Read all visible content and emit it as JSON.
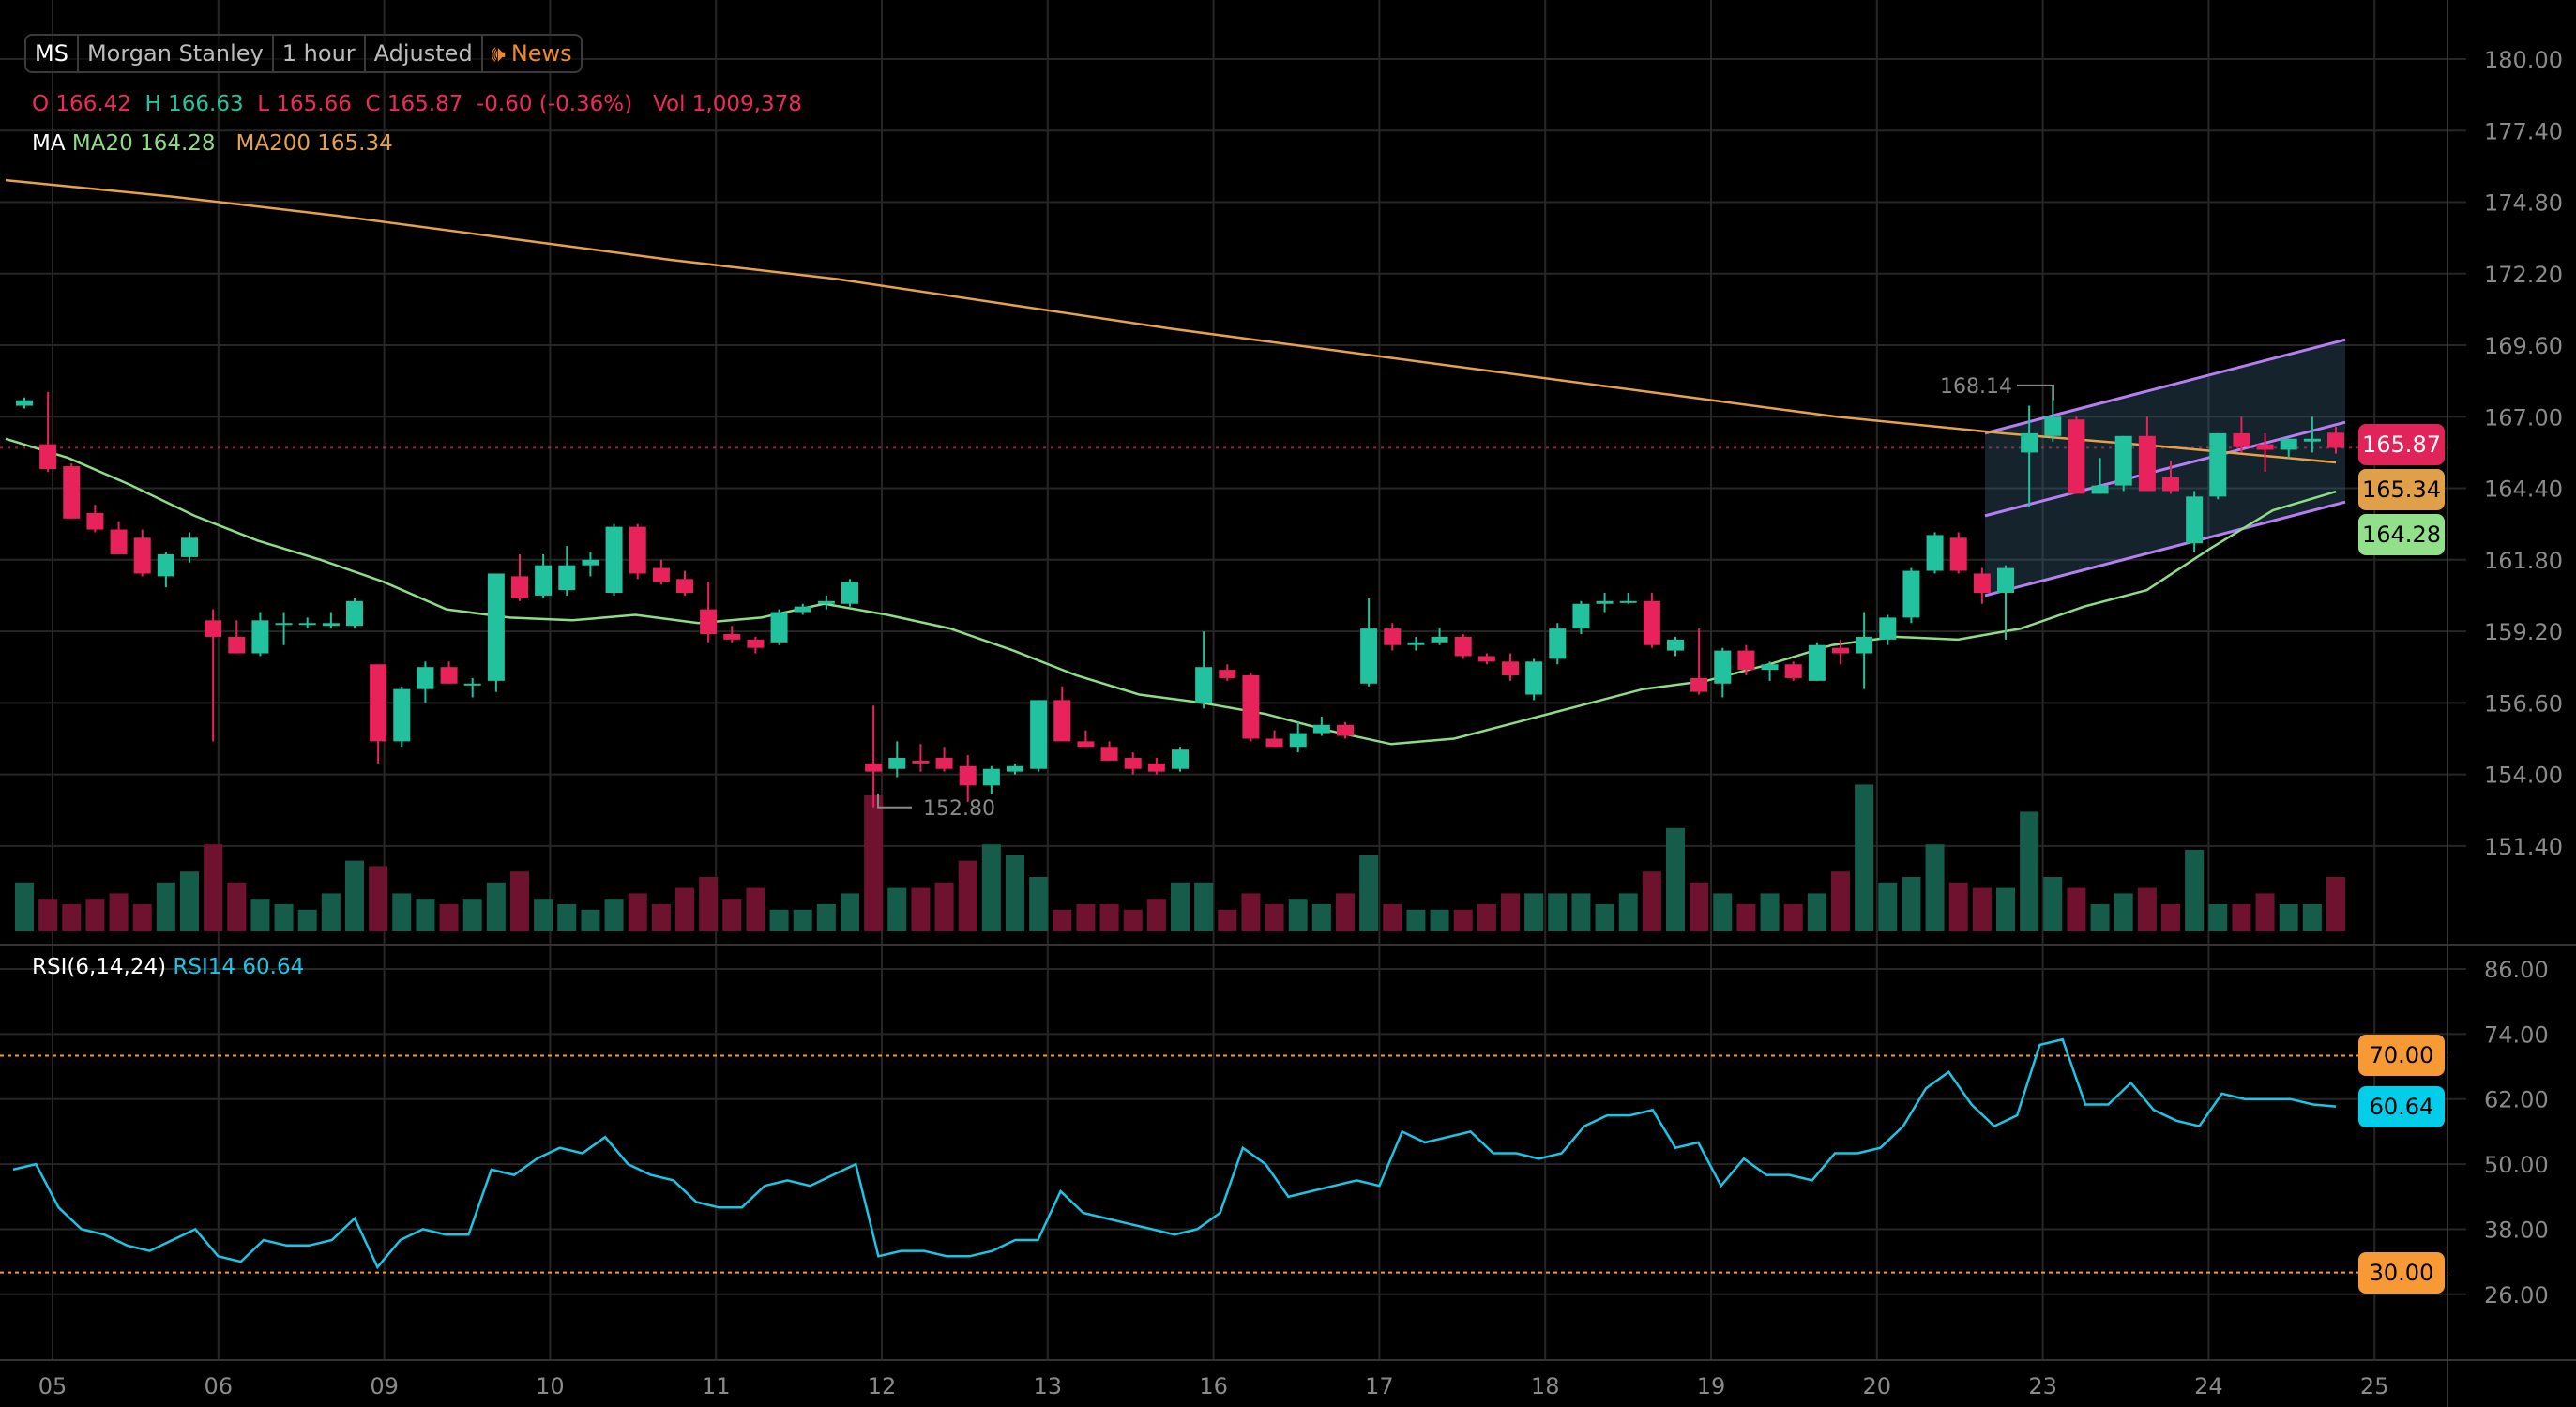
{
  "header": {
    "symbol": "MS",
    "name": "Morgan Stanley",
    "interval": "1 hour",
    "adjustment": "Adjusted",
    "news_label": "News",
    "news_icon": "speaker-icon"
  },
  "ohlc": {
    "o_label": "O",
    "o": "166.42",
    "h_label": "H",
    "h": "166.63",
    "l_label": "L",
    "l": "165.66",
    "c_label": "C",
    "c": "165.87",
    "change": "-0.60 (-0.36%)",
    "vol_label": "Vol",
    "vol": "1,009,378"
  },
  "ma": {
    "label": "MA",
    "ma20_label": "MA20",
    "ma20": "164.28",
    "ma200_label": "MA200",
    "ma200": "165.34"
  },
  "rsi_legend": {
    "label": "RSI(6,14,24)",
    "rsi14_label": "RSI14",
    "rsi14": "60.64"
  },
  "colors": {
    "up": "#22c29e",
    "down": "#e8235c",
    "ma20": "#8fdc86",
    "ma200": "#e5a24a",
    "rsi": "#19c6e6",
    "channel": "#b57ff2",
    "band": "#f79a35"
  },
  "chart_data": {
    "type": "candlestick",
    "price_ticks": [
      "180.00",
      "177.40",
      "174.80",
      "172.20",
      "169.60",
      "167.00",
      "164.40",
      "161.80",
      "159.20",
      "156.60",
      "154.00",
      "151.40"
    ],
    "price_range": [
      151.4,
      180.0
    ],
    "date_labels": [
      "05",
      "06",
      "09",
      "10",
      "11",
      "12",
      "13",
      "16",
      "17",
      "18",
      "19",
      "20",
      "23",
      "24",
      "25"
    ],
    "rsi_ticks": [
      "86.00",
      "74.00",
      "62.00",
      "50.00",
      "38.00",
      "26.00"
    ],
    "rsi_range": [
      26,
      86
    ],
    "rsi_bands": [
      "70.00",
      "30.00"
    ],
    "last_price": "165.87",
    "ma200_tag": "165.34",
    "ma20_tag": "164.28",
    "rsi_tag": "60.64",
    "high_annotation": "168.14",
    "low_annotation": "152.80",
    "candles": [
      [
        167.4,
        167.7,
        167.3,
        167.6,
        0.9
      ],
      [
        166.0,
        167.9,
        165.0,
        165.1,
        0.6
      ],
      [
        165.2,
        165.3,
        163.3,
        163.3,
        0.5
      ],
      [
        163.5,
        163.8,
        162.8,
        162.9,
        0.6
      ],
      [
        162.9,
        163.2,
        162.0,
        162.0,
        0.7
      ],
      [
        162.6,
        162.9,
        161.2,
        161.3,
        0.5
      ],
      [
        161.2,
        162.1,
        160.8,
        162.0,
        0.9
      ],
      [
        161.9,
        162.8,
        161.7,
        162.6,
        1.1
      ],
      [
        159.6,
        160.0,
        155.2,
        159.0,
        1.6
      ],
      [
        159.0,
        159.6,
        158.4,
        158.4,
        0.9
      ],
      [
        158.4,
        159.9,
        158.3,
        159.6,
        0.6
      ],
      [
        159.5,
        159.9,
        158.7,
        159.5,
        0.5
      ],
      [
        159.5,
        159.7,
        159.3,
        159.5,
        0.4
      ],
      [
        159.4,
        159.9,
        159.3,
        159.5,
        0.7
      ],
      [
        159.4,
        160.4,
        159.3,
        160.3,
        1.3
      ],
      [
        158.0,
        158.0,
        154.4,
        155.2,
        1.2
      ],
      [
        155.2,
        157.2,
        155.0,
        157.1,
        0.7
      ],
      [
        157.1,
        158.1,
        156.6,
        157.9,
        0.6
      ],
      [
        157.9,
        158.1,
        157.3,
        157.3,
        0.5
      ],
      [
        157.3,
        157.5,
        156.8,
        157.3,
        0.6
      ],
      [
        157.4,
        161.3,
        157.0,
        161.3,
        0.9
      ],
      [
        161.2,
        162.0,
        160.3,
        160.4,
        1.1
      ],
      [
        160.5,
        162.0,
        160.4,
        161.6,
        0.6
      ],
      [
        160.7,
        162.3,
        160.5,
        161.6,
        0.5
      ],
      [
        161.6,
        162.1,
        161.2,
        161.8,
        0.4
      ],
      [
        160.6,
        163.1,
        160.5,
        163.0,
        0.6
      ],
      [
        163.0,
        163.1,
        161.1,
        161.3,
        0.7
      ],
      [
        161.5,
        161.8,
        160.9,
        161.0,
        0.5
      ],
      [
        161.1,
        161.4,
        160.5,
        160.6,
        0.8
      ],
      [
        160.0,
        161.0,
        158.8,
        159.1,
        1.0
      ],
      [
        159.1,
        159.4,
        158.8,
        158.9,
        0.6
      ],
      [
        158.9,
        159.0,
        158.4,
        158.6,
        0.8
      ],
      [
        158.8,
        160.0,
        158.7,
        159.9,
        0.4
      ],
      [
        159.9,
        160.2,
        159.8,
        160.1,
        0.4
      ],
      [
        160.2,
        160.5,
        160.0,
        160.3,
        0.5
      ],
      [
        160.2,
        161.1,
        160.1,
        161.0,
        0.7
      ],
      [
        154.4,
        156.5,
        152.8,
        154.1,
        2.5
      ],
      [
        154.2,
        155.2,
        153.9,
        154.6,
        0.8
      ],
      [
        154.5,
        155.1,
        154.1,
        154.4,
        0.8
      ],
      [
        154.6,
        155.0,
        154.1,
        154.2,
        0.9
      ],
      [
        154.3,
        154.7,
        153.0,
        153.6,
        1.3
      ],
      [
        153.6,
        154.3,
        153.3,
        154.2,
        1.6
      ],
      [
        154.1,
        154.4,
        154.0,
        154.3,
        1.4
      ],
      [
        154.2,
        156.7,
        154.1,
        156.7,
        1.0
      ],
      [
        156.7,
        157.2,
        155.2,
        155.2,
        0.4
      ],
      [
        155.2,
        155.6,
        155.0,
        155.0,
        0.5
      ],
      [
        155.0,
        155.2,
        154.5,
        154.5,
        0.5
      ],
      [
        154.6,
        154.8,
        154.0,
        154.2,
        0.4
      ],
      [
        154.4,
        154.6,
        154.0,
        154.1,
        0.6
      ],
      [
        154.2,
        155.0,
        154.1,
        154.9,
        0.9
      ],
      [
        156.6,
        159.2,
        156.4,
        157.9,
        0.9
      ],
      [
        157.8,
        158.0,
        157.4,
        157.5,
        0.4
      ],
      [
        157.6,
        157.7,
        155.2,
        155.3,
        0.7
      ],
      [
        155.3,
        155.6,
        155.0,
        155.0,
        0.5
      ],
      [
        155.0,
        155.9,
        154.8,
        155.5,
        0.6
      ],
      [
        155.5,
        156.1,
        155.4,
        155.8,
        0.5
      ],
      [
        155.8,
        155.9,
        155.3,
        155.4,
        0.7
      ],
      [
        157.3,
        160.4,
        157.2,
        159.3,
        1.4
      ],
      [
        159.3,
        159.5,
        158.5,
        158.7,
        0.5
      ],
      [
        158.7,
        159.0,
        158.5,
        158.8,
        0.4
      ],
      [
        158.8,
        159.3,
        158.7,
        159.0,
        0.4
      ],
      [
        159.0,
        159.1,
        158.2,
        158.3,
        0.4
      ],
      [
        158.3,
        158.4,
        158.0,
        158.1,
        0.5
      ],
      [
        158.1,
        158.4,
        157.4,
        157.6,
        0.7
      ],
      [
        156.9,
        158.2,
        156.7,
        158.1,
        0.7
      ],
      [
        158.2,
        159.5,
        158.0,
        159.3,
        0.7
      ],
      [
        159.3,
        160.3,
        159.1,
        160.2,
        0.7
      ],
      [
        160.2,
        160.6,
        159.9,
        160.3,
        0.5
      ],
      [
        160.3,
        160.6,
        160.2,
        160.3,
        0.7
      ],
      [
        160.3,
        160.6,
        158.6,
        158.7,
        1.1
      ],
      [
        158.5,
        159.0,
        158.3,
        158.9,
        1.9
      ],
      [
        157.5,
        159.3,
        156.9,
        157.0,
        0.9
      ],
      [
        157.3,
        158.6,
        156.8,
        158.5,
        0.7
      ],
      [
        158.5,
        158.7,
        157.6,
        157.8,
        0.5
      ],
      [
        157.8,
        158.1,
        157.4,
        158.0,
        0.7
      ],
      [
        158.0,
        158.1,
        157.4,
        157.5,
        0.5
      ],
      [
        157.4,
        158.8,
        157.4,
        158.7,
        0.7
      ],
      [
        158.6,
        158.9,
        158.0,
        158.4,
        1.1
      ],
      [
        158.4,
        159.9,
        157.1,
        159.0,
        2.7
      ],
      [
        158.9,
        159.8,
        158.7,
        159.7,
        0.9
      ],
      [
        159.7,
        161.5,
        159.5,
        161.4,
        1.0
      ],
      [
        161.4,
        162.8,
        161.3,
        162.7,
        1.6
      ],
      [
        162.6,
        162.8,
        161.3,
        161.4,
        0.9
      ],
      [
        161.3,
        161.5,
        160.2,
        160.6,
        0.8
      ],
      [
        160.6,
        161.6,
        158.9,
        161.5,
        0.8
      ],
      [
        165.7,
        167.4,
        163.7,
        166.4,
        2.2
      ],
      [
        166.3,
        168.1,
        166.1,
        167.0,
        1.0
      ],
      [
        166.9,
        167.0,
        164.2,
        164.2,
        0.8
      ],
      [
        164.2,
        165.5,
        164.2,
        164.5,
        0.5
      ],
      [
        164.5,
        166.3,
        164.3,
        166.3,
        0.7
      ],
      [
        166.3,
        167.0,
        164.3,
        164.3,
        0.8
      ],
      [
        164.8,
        165.4,
        164.2,
        164.3,
        0.5
      ],
      [
        162.4,
        164.3,
        162.1,
        164.1,
        1.5
      ],
      [
        164.1,
        166.4,
        164.0,
        166.4,
        0.5
      ],
      [
        166.4,
        167.0,
        165.7,
        165.9,
        0.5
      ],
      [
        166.0,
        166.4,
        165.0,
        165.8,
        0.7
      ],
      [
        165.8,
        166.2,
        165.5,
        166.2,
        0.5
      ],
      [
        166.1,
        167.0,
        165.7,
        166.2,
        0.5
      ],
      [
        166.42,
        166.63,
        165.66,
        165.87,
        1.0
      ]
    ],
    "ma200": [
      175.6,
      175.0,
      174.3,
      173.5,
      172.7,
      172.0,
      171.1,
      170.2,
      169.4,
      168.6,
      167.8,
      167.0,
      166.4,
      165.9,
      165.34
    ],
    "ma20": [
      166.2,
      165.5,
      164.5,
      163.4,
      162.5,
      161.8,
      161.0,
      160.0,
      159.7,
      159.6,
      159.8,
      159.5,
      159.7,
      160.2,
      159.8,
      159.3,
      158.5,
      157.6,
      156.9,
      156.6,
      156.2,
      155.6,
      155.1,
      155.3,
      155.9,
      156.5,
      157.1,
      157.4,
      158.0,
      158.7,
      159.0,
      158.9,
      159.3,
      160.1,
      160.7,
      162.2,
      163.6,
      164.28
    ],
    "rsi": [
      49,
      50,
      42,
      38,
      37,
      35,
      34,
      36,
      38,
      33,
      32,
      36,
      35,
      35,
      36,
      40,
      31,
      36,
      38,
      37,
      37,
      49,
      48,
      51,
      53,
      52,
      55,
      50,
      48,
      47,
      43,
      42,
      42,
      46,
      47,
      46,
      48,
      50,
      33,
      34,
      34,
      33,
      33,
      34,
      36,
      36,
      45,
      41,
      40,
      39,
      38,
      37,
      38,
      41,
      53,
      50,
      44,
      45,
      46,
      47,
      46,
      56,
      54,
      55,
      56,
      52,
      52,
      51,
      52,
      57,
      59,
      59,
      60,
      53,
      54,
      46,
      51,
      48,
      48,
      47,
      52,
      52,
      53,
      57,
      64,
      67,
      61,
      57,
      59,
      72,
      73,
      61,
      61,
      65,
      60,
      58,
      57,
      63,
      62,
      62,
      62,
      61,
      60.64
    ]
  }
}
